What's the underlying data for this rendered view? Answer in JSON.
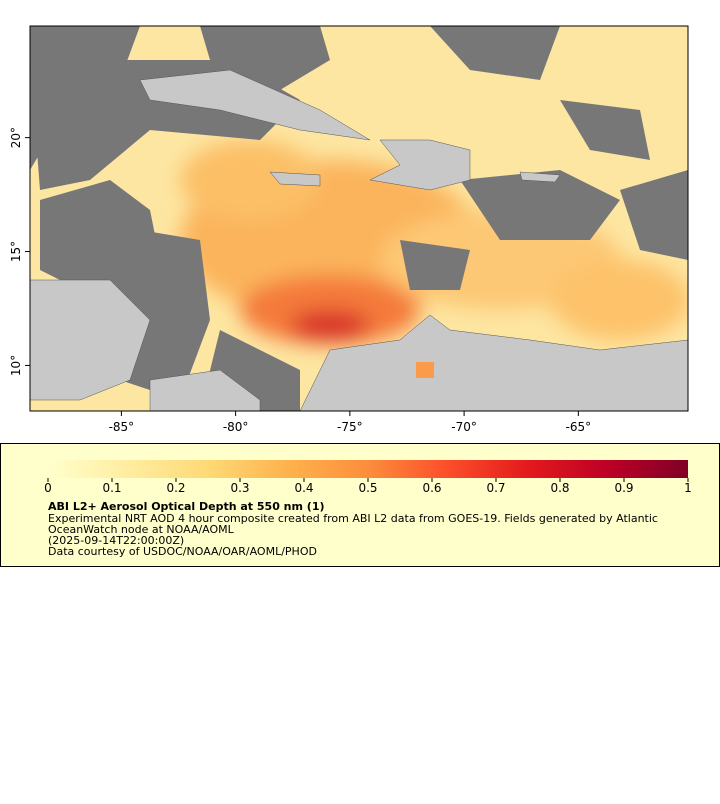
{
  "map": {
    "xlim": [
      -89,
      -60.2
    ],
    "ylim": [
      8,
      24.9
    ],
    "xticks": [
      {
        "value": -85,
        "label": "-85°"
      },
      {
        "value": -80,
        "label": "-80°"
      },
      {
        "value": -75,
        "label": "-75°"
      },
      {
        "value": -70,
        "label": "-70°"
      },
      {
        "value": -65,
        "label": "-65°"
      }
    ],
    "yticks": [
      {
        "value": 10,
        "label": "10°"
      },
      {
        "value": 15,
        "label": "15°"
      },
      {
        "value": 20,
        "label": "20°"
      }
    ]
  },
  "legend": {
    "title": "ABI L2+ Aerosol Optical Depth at 550 nm (1)",
    "lines": [
      "Experimental NRT AOD 4 hour composite created from ABI L2 data from GOES-19. Fields generated by Atlantic",
      "OceanWatch node at NOAA/AOML",
      "(2025-09-14T22:00:00Z)",
      "Data courtesy of USDOC/NOAA/OAR/AOML/PHOD"
    ],
    "colorbar": {
      "range": [
        0,
        1
      ],
      "ticks": [
        0,
        0.1,
        0.2,
        0.3,
        0.4,
        0.5,
        0.6,
        0.7,
        0.8,
        0.9,
        1
      ],
      "colors": [
        "#ffffcc",
        "#ffeda0",
        "#fed976",
        "#feb24c",
        "#fd8d3c",
        "#fc4e2a",
        "#e31a1c",
        "#bd0026",
        "#800026"
      ]
    }
  }
}
